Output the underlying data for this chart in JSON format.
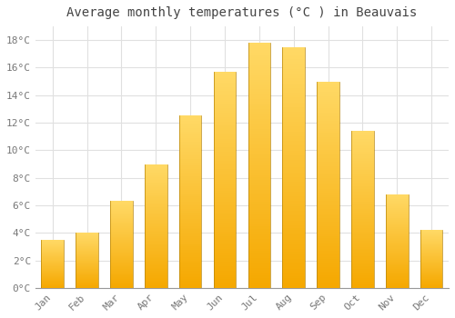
{
  "title": "Average monthly temperatures (°C ) in Beauvais",
  "months": [
    "Jan",
    "Feb",
    "Mar",
    "Apr",
    "May",
    "Jun",
    "Jul",
    "Aug",
    "Sep",
    "Oct",
    "Nov",
    "Dec"
  ],
  "temperatures": [
    3.5,
    4.0,
    6.3,
    9.0,
    12.5,
    15.7,
    17.8,
    17.5,
    15.0,
    11.4,
    6.8,
    4.2
  ],
  "bar_color_bottom": "#F5A800",
  "bar_color_top": "#FFD966",
  "bar_edge_color": "#B8860B",
  "ylim": [
    0,
    19
  ],
  "yticks": [
    0,
    2,
    4,
    6,
    8,
    10,
    12,
    14,
    16,
    18
  ],
  "ytick_labels": [
    "0°C",
    "2°C",
    "4°C",
    "6°C",
    "8°C",
    "10°C",
    "12°C",
    "14°C",
    "16°C",
    "18°C"
  ],
  "background_color": "#ffffff",
  "grid_color": "#e0e0e0",
  "title_fontsize": 10,
  "tick_fontsize": 8,
  "font_color": "#777777",
  "bar_width": 0.65,
  "figsize": [
    5.0,
    3.5
  ],
  "dpi": 100
}
